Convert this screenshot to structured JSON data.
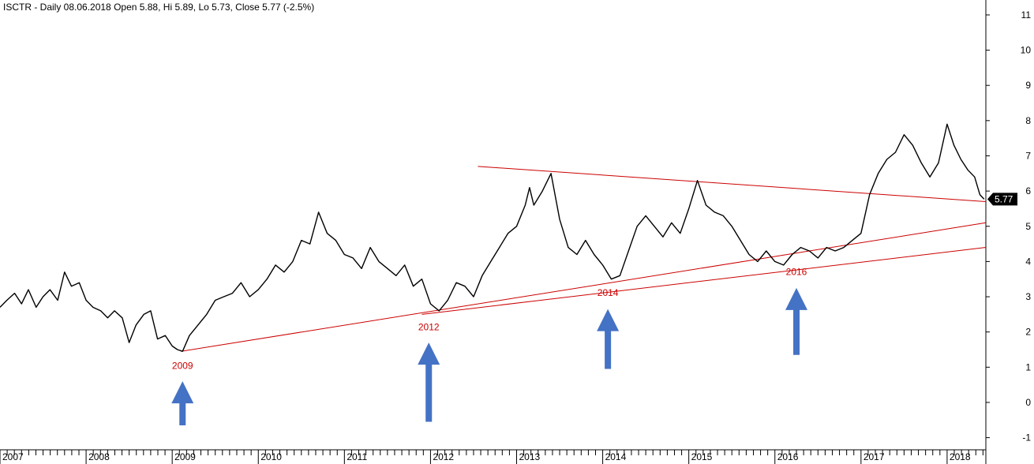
{
  "chart_data": {
    "type": "line",
    "title": "ISCTR - Daily 08.06.2018 Open 5.88, Hi 5.89, Lo 5.73, Close 5.77 (-2.5%)",
    "xlabel": "",
    "ylabel": "",
    "ylim": [
      -1.3,
      11.2
    ],
    "xlim": [
      2007.0,
      2018.45
    ],
    "y_ticks": [
      "-1",
      "0",
      "1",
      "2",
      "3",
      "4",
      "5",
      "6",
      "7",
      "8",
      "9",
      "10",
      "11"
    ],
    "x_ticks": [
      "2007",
      "2008",
      "2009",
      "2010",
      "2011",
      "2012",
      "2013",
      "2014",
      "2015",
      "2016",
      "2017",
      "2018"
    ],
    "last_price": "5.77",
    "grid": false,
    "series": [
      {
        "color": "#000000",
        "x": [
          2007.0,
          2007.08,
          2007.17,
          2007.25,
          2007.33,
          2007.42,
          2007.5,
          2007.58,
          2007.67,
          2007.75,
          2007.83,
          2007.92,
          2008.0,
          2008.08,
          2008.17,
          2008.25,
          2008.33,
          2008.42,
          2008.5,
          2008.58,
          2008.67,
          2008.75,
          2008.83,
          2008.92,
          2009.0,
          2009.06,
          2009.12,
          2009.2,
          2009.3,
          2009.4,
          2009.5,
          2009.6,
          2009.7,
          2009.8,
          2009.9,
          2010.0,
          2010.1,
          2010.2,
          2010.3,
          2010.4,
          2010.5,
          2010.6,
          2010.7,
          2010.8,
          2010.9,
          2011.0,
          2011.1,
          2011.2,
          2011.3,
          2011.4,
          2011.5,
          2011.6,
          2011.7,
          2011.8,
          2011.9,
          2012.0,
          2012.1,
          2012.2,
          2012.3,
          2012.4,
          2012.5,
          2012.6,
          2012.7,
          2012.8,
          2012.9,
          2013.0,
          2013.1,
          2013.15,
          2013.2,
          2013.3,
          2013.4,
          2013.5,
          2013.6,
          2013.7,
          2013.8,
          2013.9,
          2014.0,
          2014.1,
          2014.2,
          2014.3,
          2014.4,
          2014.5,
          2014.6,
          2014.7,
          2014.8,
          2014.9,
          2015.0,
          2015.1,
          2015.2,
          2015.3,
          2015.4,
          2015.5,
          2015.6,
          2015.7,
          2015.8,
          2015.9,
          2016.0,
          2016.1,
          2016.2,
          2016.3,
          2016.4,
          2016.5,
          2016.6,
          2016.7,
          2016.8,
          2016.9,
          2017.0,
          2017.1,
          2017.2,
          2017.3,
          2017.4,
          2017.5,
          2017.6,
          2017.7,
          2017.8,
          2017.9,
          2018.0,
          2018.08,
          2018.16,
          2018.24,
          2018.32,
          2018.38,
          2018.43
        ],
        "values": [
          2.7,
          2.9,
          3.1,
          2.8,
          3.2,
          2.7,
          3.0,
          3.2,
          2.9,
          3.7,
          3.3,
          3.4,
          2.9,
          2.7,
          2.6,
          2.4,
          2.6,
          2.4,
          1.7,
          2.2,
          2.5,
          2.6,
          1.8,
          1.9,
          1.6,
          1.5,
          1.45,
          1.9,
          2.2,
          2.5,
          2.9,
          3.0,
          3.1,
          3.4,
          3.0,
          3.2,
          3.5,
          3.9,
          3.7,
          4.0,
          4.6,
          4.5,
          5.4,
          4.8,
          4.6,
          4.2,
          4.1,
          3.8,
          4.4,
          4.0,
          3.8,
          3.6,
          3.9,
          3.3,
          3.5,
          2.8,
          2.6,
          2.9,
          3.4,
          3.3,
          3.0,
          3.6,
          4.0,
          4.4,
          4.8,
          5.0,
          5.6,
          6.1,
          5.6,
          6.0,
          6.5,
          5.2,
          4.4,
          4.2,
          4.6,
          4.2,
          3.9,
          3.5,
          3.6,
          4.3,
          5.0,
          5.3,
          5.0,
          4.7,
          5.1,
          4.8,
          5.5,
          6.3,
          5.6,
          5.4,
          5.3,
          5.0,
          4.6,
          4.2,
          4.0,
          4.3,
          4.0,
          3.9,
          4.2,
          4.4,
          4.3,
          4.1,
          4.4,
          4.3,
          4.4,
          4.6,
          4.8,
          5.9,
          6.5,
          6.9,
          7.1,
          7.6,
          7.3,
          6.8,
          6.4,
          6.8,
          7.9,
          7.3,
          6.9,
          6.6,
          6.4,
          5.9,
          5.77
        ]
      }
    ],
    "trendlines": [
      {
        "color": "#cc0000",
        "from": [
          2009.1,
          1.45
        ],
        "to": [
          2018.45,
          5.1
        ]
      },
      {
        "color": "#cc0000",
        "from": [
          2011.9,
          2.5
        ],
        "to": [
          2018.45,
          4.4
        ]
      },
      {
        "color": "#cc0000",
        "from": [
          2012.55,
          6.7
        ],
        "to": [
          2018.45,
          5.7
        ]
      }
    ],
    "annotations": [
      {
        "label": "2009",
        "color": "#cc0000",
        "x": 2009.12,
        "y": 0.95,
        "arrow_tip_y": 0.6,
        "arrow_tail_y": -0.65
      },
      {
        "label": "2012",
        "color": "#cc0000",
        "x": 2011.98,
        "y": 2.05,
        "arrow_tip_y": 1.7,
        "arrow_tail_y": -0.55
      },
      {
        "label": "2014",
        "color": "#cc0000",
        "x": 2014.06,
        "y": 3.02,
        "arrow_tip_y": 2.65,
        "arrow_tail_y": 0.95
      },
      {
        "label": "2016",
        "color": "#cc0000",
        "x": 2016.25,
        "y": 3.62,
        "arrow_tip_y": 3.25,
        "arrow_tail_y": 1.35
      }
    ],
    "arrow_color": "#4472c4"
  }
}
